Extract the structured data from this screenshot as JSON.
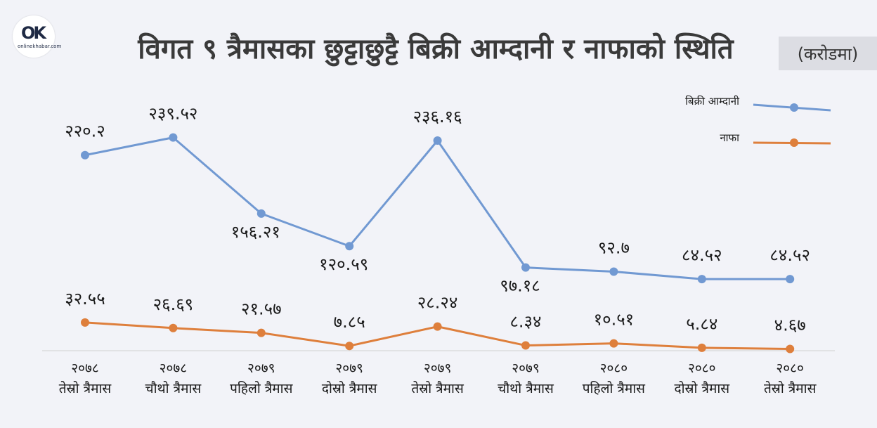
{
  "logo": {
    "mark": "OK",
    "sub": "onlinekhabar.com"
  },
  "header": {
    "title": "विगत ९ त्रैमासका छुट्टाछुट्टै बिक्री आम्दानी र नाफाको स्थिति",
    "unit": "(करोडमा)"
  },
  "colors": {
    "revenue": "#7199d2",
    "profit": "#de7f3c"
  },
  "chart_data": {
    "type": "line",
    "categories": [
      [
        "२०७८",
        "तेस्रो त्रैमास"
      ],
      [
        "२०७८",
        "चौथो त्रैमास"
      ],
      [
        "२०७९",
        "पहिलो त्रैमास"
      ],
      [
        "२०७९",
        "दोस्रो त्रैमास"
      ],
      [
        "२०७९",
        "तेस्रो त्रैमास"
      ],
      [
        "२०७९",
        "चौथो त्रैमास"
      ],
      [
        "२०८०",
        "पहिलो त्रैमास"
      ],
      [
        "२०८०",
        "दोस्रो त्रैमास"
      ],
      [
        "२०८०",
        "तेस्रो त्रैमास"
      ]
    ],
    "series": [
      {
        "name": "बिक्री आम्दानी",
        "values": [
          220.2,
          239.52,
          156.21,
          120.59,
          236.16,
          97.18,
          92.7,
          84.52,
          84.52
        ],
        "labels": [
          "२२०.२",
          "२३९.५२",
          "१५६.२१",
          "१२०.५९",
          "२३६.१६",
          "९७.१८",
          "९२.७",
          "८४.५२",
          "८४.५२"
        ]
      },
      {
        "name": "नाफा",
        "values": [
          32.55,
          26.69,
          21.57,
          7.85,
          28.24,
          8.34,
          10.51,
          5.84,
          4.67
        ],
        "labels": [
          "३२.५५",
          "२६.६९",
          "२१.५७",
          "७.८५",
          "२८.२४",
          "८.३४",
          "१०.५१",
          "५.८४",
          "४.६७"
        ]
      }
    ],
    "grid": false,
    "legend": "right"
  }
}
